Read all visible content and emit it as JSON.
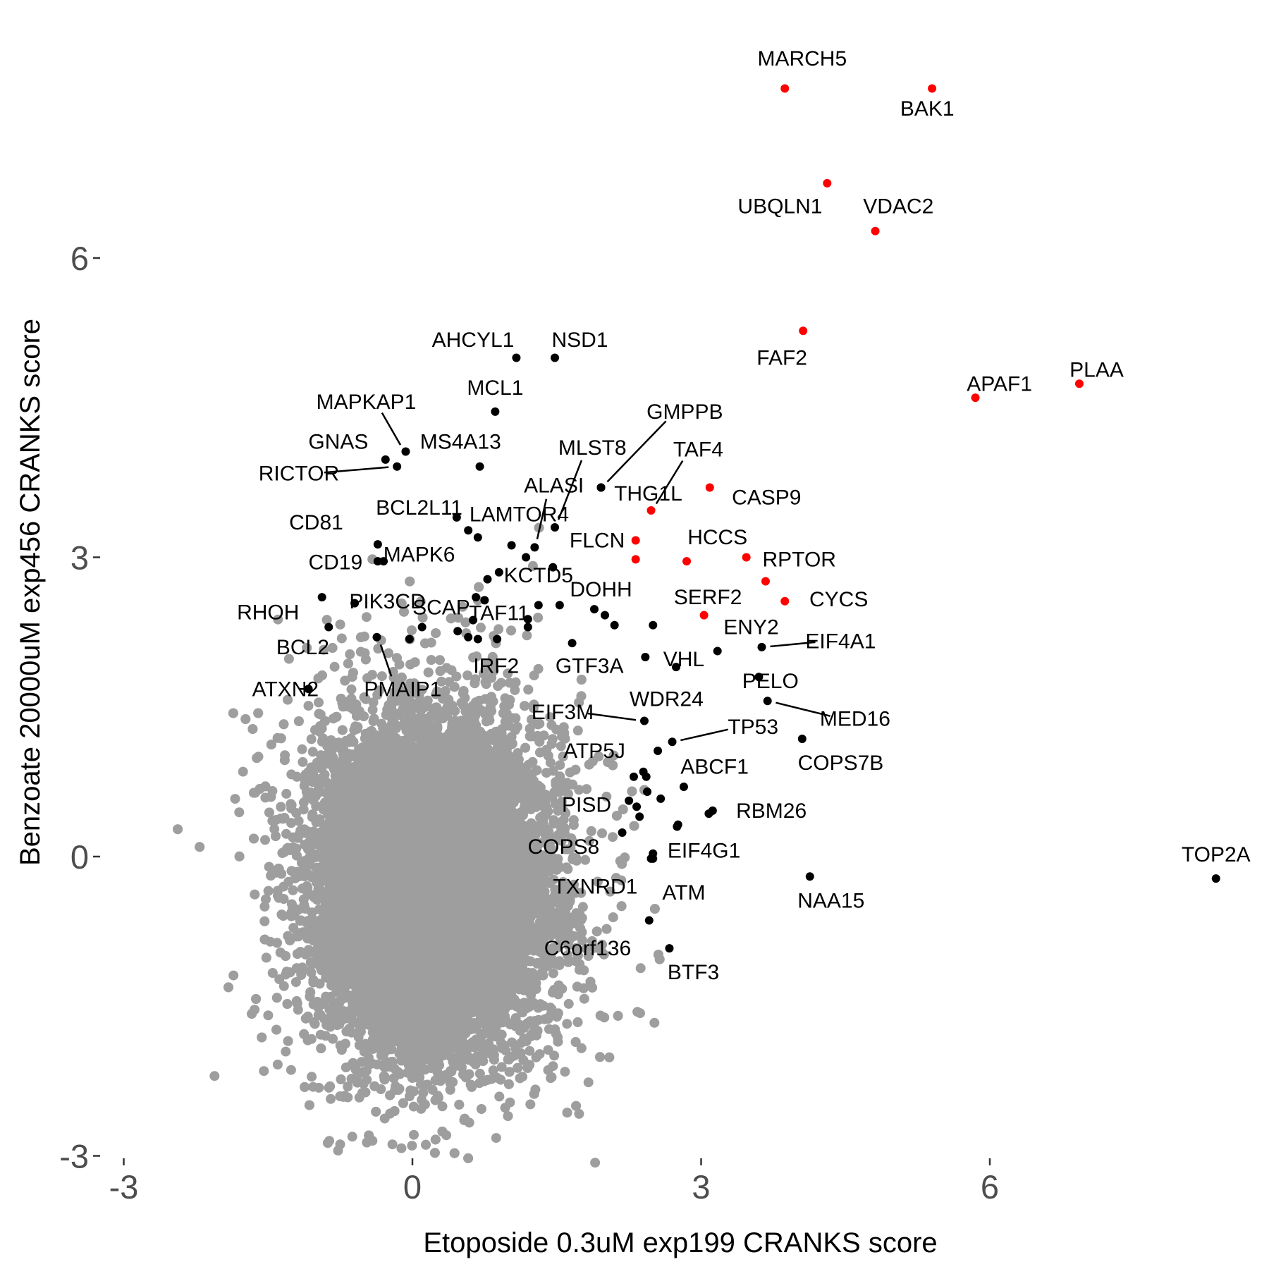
{
  "chart_data": {
    "type": "scatter",
    "xlabel": "Etoposide 0.3uM exp199 CRANKS score",
    "ylabel": "Benzoate 20000uM exp456 CRANKS score",
    "xlim": [
      -3.2,
      8.6
    ],
    "ylim": [
      -3.1,
      8.4
    ],
    "x_ticks": [
      -3,
      0,
      3,
      6
    ],
    "y_ticks": [
      -3,
      0,
      3,
      6
    ],
    "grid": false,
    "legend": "none",
    "colors": {
      "background": "#9e9e9e",
      "highlight": "#ff0000",
      "hit": "#000000"
    },
    "background_cloud": {
      "description_count": 18000,
      "center_x": 0.2,
      "center_y": -0.3,
      "sd_x": 0.55,
      "sd_y": 0.75,
      "x_range": [
        -2.7,
        2.8
      ],
      "y_range": [
        -3.1,
        3.5
      ]
    },
    "labeled_points": [
      {
        "gene": "MARCH5",
        "x": 3.87,
        "y": 7.7,
        "color": "red",
        "lx": 4.05,
        "ly": 8.0
      },
      {
        "gene": "BAK1",
        "x": 5.4,
        "y": 7.7,
        "color": "red",
        "lx": 5.35,
        "ly": 7.5
      },
      {
        "gene": "UBQLN1",
        "x": 4.31,
        "y": 6.75,
        "color": "red",
        "lx": 3.82,
        "ly": 6.52
      },
      {
        "gene": "VDAC2",
        "x": 4.81,
        "y": 6.27,
        "color": "red",
        "lx": 5.05,
        "ly": 6.52
      },
      {
        "gene": "FAF2",
        "x": 4.06,
        "y": 5.27,
        "color": "red",
        "lx": 3.84,
        "ly": 5.0
      },
      {
        "gene": "APAF1",
        "x": 5.85,
        "y": 4.6,
        "color": "red",
        "lx": 6.1,
        "ly": 4.74
      },
      {
        "gene": "PLAA",
        "x": 6.93,
        "y": 4.74,
        "color": "red",
        "lx": 7.11,
        "ly": 4.88
      },
      {
        "gene": "CASP9",
        "x": 3.09,
        "y": 3.7,
        "color": "red",
        "lx": 3.68,
        "ly": 3.6
      },
      {
        "gene": "TAF4",
        "x": 2.48,
        "y": 3.47,
        "color": "red",
        "lx": 2.97,
        "ly": 4.08,
        "line": true
      },
      {
        "gene": "FLCN",
        "x": 2.32,
        "y": 3.17,
        "color": "red",
        "lx": 1.92,
        "ly": 3.17
      },
      {
        "gene": "HCCS",
        "x": 2.85,
        "y": 2.96,
        "color": "red",
        "lx": 3.17,
        "ly": 3.2
      },
      {
        "gene": "RPTOR",
        "x": 3.47,
        "y": 3.0,
        "color": "red",
        "lx": 4.02,
        "ly": 2.98
      },
      {
        "gene": "DOHH",
        "x": 2.32,
        "y": 2.98,
        "color": "red",
        "lx": 1.96,
        "ly": 2.68
      },
      {
        "gene": "SERF2",
        "x": 3.67,
        "y": 2.76,
        "color": "red",
        "lx": 3.07,
        "ly": 2.6
      },
      {
        "gene": "CYCS",
        "x": 3.87,
        "y": 2.56,
        "color": "red",
        "lx": 4.43,
        "ly": 2.58
      },
      {
        "gene": "ENY2",
        "x": 3.03,
        "y": 2.42,
        "color": "red",
        "lx": 3.52,
        "ly": 2.3
      },
      {
        "gene": "TOP2A",
        "x": 8.35,
        "y": -0.22,
        "color": "black",
        "lx": 8.35,
        "ly": 0.02
      },
      {
        "gene": "NAA15",
        "x": 4.13,
        "y": -0.2,
        "color": "black",
        "lx": 4.35,
        "ly": -0.44
      },
      {
        "gene": "COPS7B",
        "x": 4.05,
        "y": 1.18,
        "color": "black",
        "lx": 4.45,
        "ly": 0.94
      },
      {
        "gene": "MED16",
        "x": 3.69,
        "y": 1.56,
        "color": "black",
        "lx": 4.6,
        "ly": 1.38,
        "line": true
      },
      {
        "gene": "PELO",
        "x": 3.6,
        "y": 1.8,
        "color": "black",
        "lx": 3.72,
        "ly": 1.76
      },
      {
        "gene": "EIF4A1",
        "x": 3.63,
        "y": 2.1,
        "color": "black",
        "lx": 4.45,
        "ly": 2.16,
        "line": true
      },
      {
        "gene": "AHCYL1",
        "x": 1.08,
        "y": 5.0,
        "color": "black",
        "lx": 0.63,
        "ly": 5.18
      },
      {
        "gene": "NSD1",
        "x": 1.48,
        "y": 5.0,
        "color": "black",
        "lx": 1.74,
        "ly": 5.18
      },
      {
        "gene": "MCL1",
        "x": 0.86,
        "y": 4.46,
        "color": "black",
        "lx": 0.86,
        "ly": 4.7
      },
      {
        "gene": "MAPKAP1",
        "x": -0.07,
        "y": 4.06,
        "color": "black",
        "lx": -0.48,
        "ly": 4.56,
        "line": true
      },
      {
        "gene": "GNAS",
        "x": -0.28,
        "y": 3.98,
        "color": "black",
        "lx": -0.77,
        "ly": 4.16
      },
      {
        "gene": "MS4A13",
        "x": 0.7,
        "y": 3.91,
        "color": "black",
        "lx": 0.5,
        "ly": 4.16
      },
      {
        "gene": "RICTOR",
        "x": -0.16,
        "y": 3.91,
        "color": "black",
        "lx": -1.18,
        "ly": 3.84,
        "line": true
      },
      {
        "gene": "BCL2L11",
        "x": 0.46,
        "y": 3.4,
        "color": "black",
        "lx": 0.07,
        "ly": 3.5
      },
      {
        "gene": "GMPPB",
        "x": 1.96,
        "y": 3.7,
        "color": "black",
        "lx": 2.83,
        "ly": 4.46,
        "line": true
      },
      {
        "gene": "MLST8",
        "x": 1.48,
        "y": 3.3,
        "color": "black",
        "lx": 1.87,
        "ly": 4.1,
        "line": true
      },
      {
        "gene": "ALASI",
        "x": 1.27,
        "y": 3.1,
        "color": "black",
        "lx": 1.47,
        "ly": 3.72,
        "line": true
      },
      {
        "gene": "LAMTOR4",
        "x": 0.58,
        "y": 3.27,
        "color": "black",
        "lx": 1.11,
        "ly": 3.43
      },
      {
        "gene": "THG1L",
        "x": 1.96,
        "y": 3.7,
        "color": "black",
        "lx": 2.45,
        "ly": 3.64
      },
      {
        "gene": "CD81",
        "x": -0.36,
        "y": 3.13,
        "color": "black",
        "lx": -1.0,
        "ly": 3.35
      },
      {
        "gene": "MAPK6",
        "x": -0.3,
        "y": 2.96,
        "color": "black",
        "lx": 0.07,
        "ly": 3.03
      },
      {
        "gene": "CD19",
        "x": -0.36,
        "y": 2.96,
        "color": "black",
        "lx": -0.8,
        "ly": 2.95
      },
      {
        "gene": "KCTD5",
        "x": 1.03,
        "y": 3.12,
        "color": "black",
        "lx": 1.31,
        "ly": 2.82
      },
      {
        "gene": "RHOH",
        "x": -0.94,
        "y": 2.6,
        "color": "black",
        "lx": -1.5,
        "ly": 2.45
      },
      {
        "gene": "PIK3CD",
        "x": -0.6,
        "y": 2.54,
        "color": "black",
        "lx": -0.26,
        "ly": 2.56
      },
      {
        "gene": "SCAP",
        "x": 0.1,
        "y": 2.3,
        "color": "black",
        "lx": 0.3,
        "ly": 2.5
      },
      {
        "gene": "TAF11",
        "x": 0.63,
        "y": 2.37,
        "color": "black",
        "lx": 0.9,
        "ly": 2.44
      },
      {
        "gene": "BCL2",
        "x": -0.87,
        "y": 2.3,
        "color": "black",
        "lx": -1.14,
        "ly": 2.1
      },
      {
        "gene": "ATXN2",
        "x": -1.08,
        "y": 1.68,
        "color": "black",
        "lx": -1.32,
        "ly": 1.68,
        "line": true
      },
      {
        "gene": "PMAIP1",
        "x": -0.37,
        "y": 2.2,
        "color": "black",
        "lx": -0.1,
        "ly": 1.68,
        "line": true
      },
      {
        "gene": "IRF2",
        "x": 0.58,
        "y": 2.2,
        "color": "black",
        "lx": 0.87,
        "ly": 1.91
      },
      {
        "gene": "GTF3A",
        "x": 1.66,
        "y": 2.14,
        "color": "black",
        "lx": 1.84,
        "ly": 1.91
      },
      {
        "gene": "VHL",
        "x": 2.42,
        "y": 2.0,
        "color": "black",
        "lx": 2.82,
        "ly": 1.98
      },
      {
        "gene": "WDR24",
        "x": 2.74,
        "y": 1.9,
        "color": "black",
        "lx": 2.64,
        "ly": 1.58
      },
      {
        "gene": "EIF3M",
        "x": 2.41,
        "y": 1.36,
        "color": "black",
        "lx": 1.56,
        "ly": 1.45,
        "line": true
      },
      {
        "gene": "TP53",
        "x": 2.7,
        "y": 1.15,
        "color": "black",
        "lx": 3.54,
        "ly": 1.3,
        "line": true
      },
      {
        "gene": "ATP5J",
        "x": 2.55,
        "y": 1.06,
        "color": "black",
        "lx": 1.89,
        "ly": 1.06
      },
      {
        "gene": "ABCF1",
        "x": 2.82,
        "y": 0.7,
        "color": "black",
        "lx": 3.14,
        "ly": 0.9
      },
      {
        "gene": "PISD",
        "x": 2.33,
        "y": 0.5,
        "color": "black",
        "lx": 1.81,
        "ly": 0.52
      },
      {
        "gene": "RBM26",
        "x": 3.12,
        "y": 0.46,
        "color": "black",
        "lx": 3.73,
        "ly": 0.46
      },
      {
        "gene": "COPS8",
        "x": 2.18,
        "y": 0.24,
        "color": "black",
        "lx": 1.57,
        "ly": 0.1
      },
      {
        "gene": "EIF4G1",
        "x": 2.5,
        "y": 0.03,
        "color": "black",
        "lx": 3.03,
        "ly": 0.06
      },
      {
        "gene": "TXNRD1",
        "x": 2.5,
        "y": -0.02,
        "color": "black",
        "lx": 1.9,
        "ly": -0.3
      },
      {
        "gene": "ATM",
        "x": 2.75,
        "y": 0.3,
        "color": "black",
        "lx": 2.82,
        "ly": -0.36
      },
      {
        "gene": "C6orf136",
        "x": 2.46,
        "y": -0.64,
        "color": "black",
        "lx": 1.82,
        "ly": -0.92
      },
      {
        "gene": "BTF3",
        "x": 2.67,
        "y": -0.92,
        "color": "black",
        "lx": 2.92,
        "ly": -1.16
      }
    ],
    "other_hits": [
      {
        "x": 0.78,
        "y": 2.78
      },
      {
        "x": 0.75,
        "y": 2.57
      },
      {
        "x": 0.68,
        "y": 2.18
      },
      {
        "x": 0.9,
        "y": 2.85
      },
      {
        "x": 1.18,
        "y": 3.0
      },
      {
        "x": 1.31,
        "y": 2.52
      },
      {
        "x": 1.2,
        "y": 2.3
      },
      {
        "x": 1.53,
        "y": 2.52
      },
      {
        "x": 1.89,
        "y": 2.48
      },
      {
        "x": 2.0,
        "y": 2.42
      },
      {
        "x": 2.1,
        "y": 2.32
      },
      {
        "x": 2.5,
        "y": 2.32
      },
      {
        "x": 3.17,
        "y": 2.06
      },
      {
        "x": 0.47,
        "y": 2.26
      },
      {
        "x": 0.66,
        "y": 2.6
      },
      {
        "x": 0.88,
        "y": 2.18
      },
      {
        "x": 0.68,
        "y": 3.2
      },
      {
        "x": -0.03,
        "y": 2.18
      },
      {
        "x": 1.2,
        "y": 2.38
      },
      {
        "x": 1.46,
        "y": 2.9
      },
      {
        "x": 2.4,
        "y": 0.85
      },
      {
        "x": 2.3,
        "y": 0.8
      },
      {
        "x": 2.44,
        "y": 0.65
      },
      {
        "x": 2.58,
        "y": 0.58
      },
      {
        "x": 2.36,
        "y": 0.4
      },
      {
        "x": 2.76,
        "y": 0.32
      },
      {
        "x": 3.08,
        "y": 0.43
      },
      {
        "x": 2.48,
        "y": -0.02
      },
      {
        "x": 2.25,
        "y": 0.56
      },
      {
        "x": 2.43,
        "y": 0.8
      }
    ]
  }
}
